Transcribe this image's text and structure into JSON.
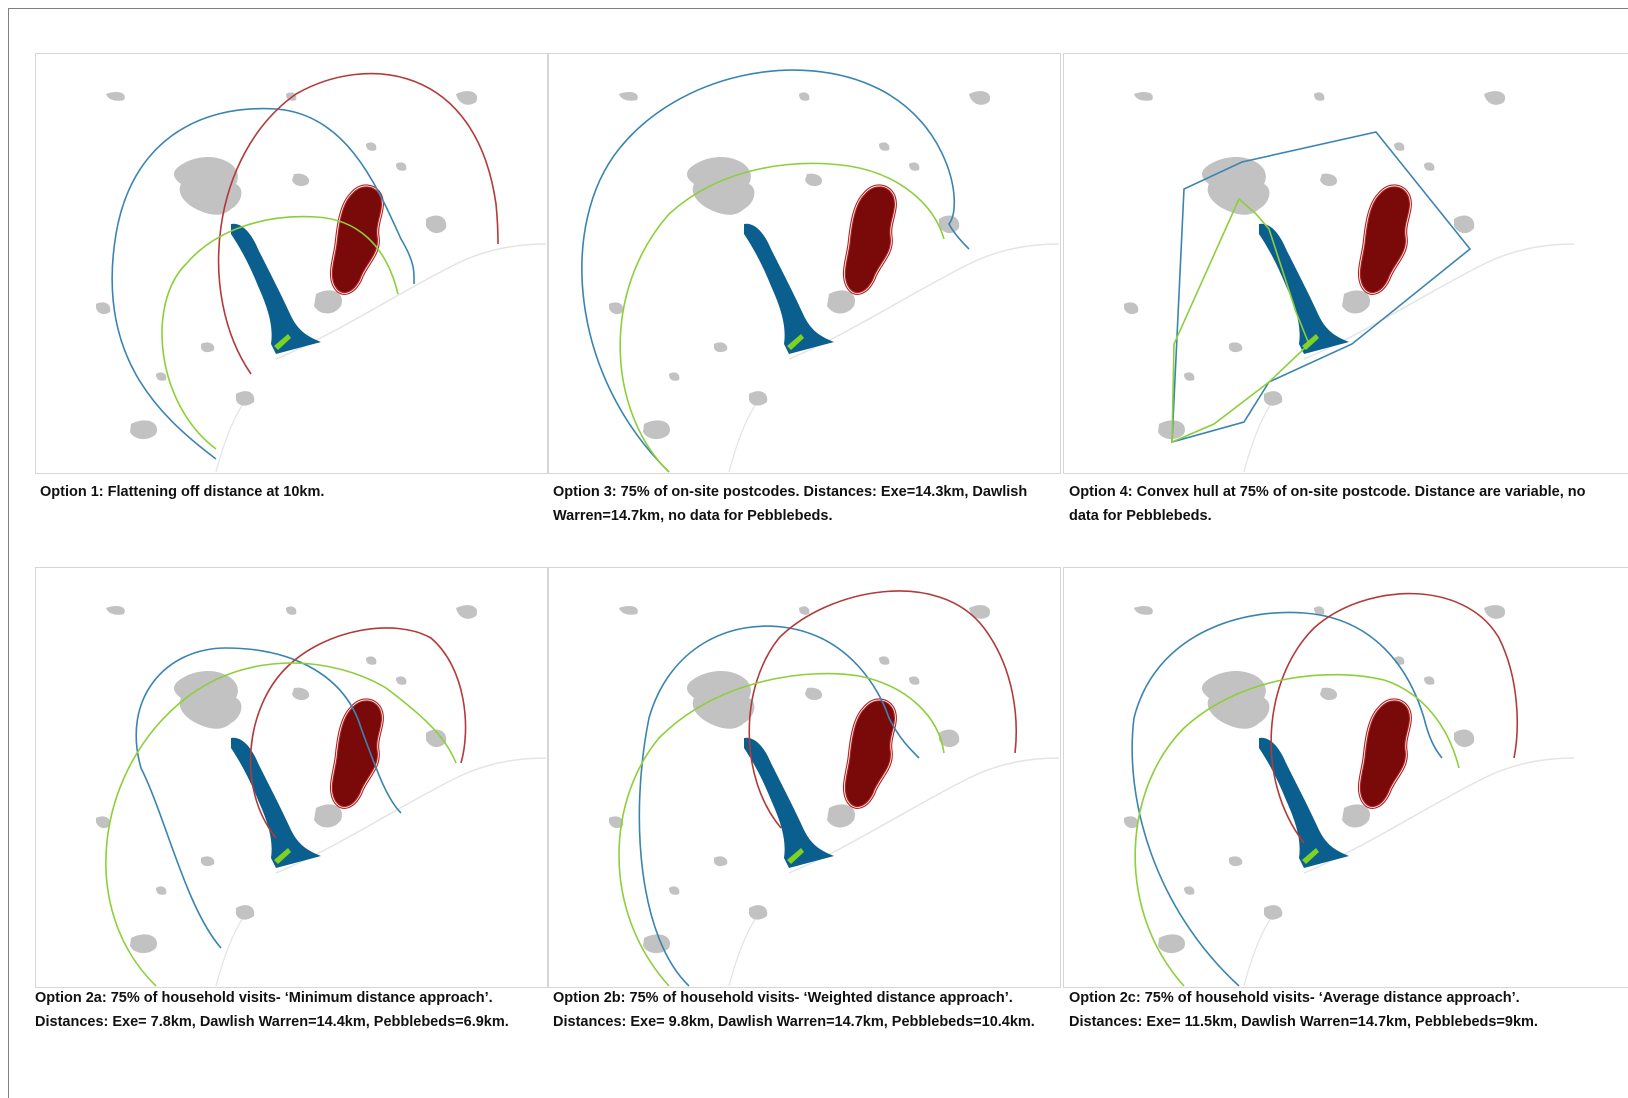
{
  "figure": {
    "panels": [
      {
        "id": "option-1",
        "caption": "Option 1: Flattening off distance at 10km.",
        "buffers": [
          "blue",
          "red",
          "green"
        ]
      },
      {
        "id": "option-3",
        "caption": "Option 3: 75% of on-site postcodes. Distances: Exe=14.3km, Dawlish Warren=14.7km, no data for Pebblebeds.",
        "buffers": [
          "blue",
          "green"
        ]
      },
      {
        "id": "option-4",
        "caption": "Option 4: Convex hull at 75% of on-site postcode. Distance are variable, no data for Pebblebeds.",
        "buffers": [
          "blue-hull",
          "green-hull"
        ]
      },
      {
        "id": "option-2a",
        "caption": "Option 2a: 75% of household visits- ‘Minimum distance approach’. Distances: Exe= 7.8km, Dawlish Warren=14.4km, Pebblebeds=6.9km.",
        "buffers": [
          "blue",
          "red",
          "green"
        ]
      },
      {
        "id": "option-2b",
        "caption": "Option 2b: 75% of household visits- ‘Weighted distance approach’. Distances: Exe= 9.8km, Dawlish Warren=14.7km, Pebblebeds=10.4km.",
        "buffers": [
          "blue",
          "red",
          "green"
        ]
      },
      {
        "id": "option-2c",
        "caption": "Option 2c: 75% of household visits- ‘Average distance approach’. Distances: Exe= 11.5km, Dawlish Warren=14.7km, Pebblebeds=9km.",
        "buffers": [
          "blue",
          "red",
          "green"
        ]
      }
    ]
  },
  "colors": {
    "settlement": "#c2c2c2",
    "estuary": "#0b5f8f",
    "pebblebeds_fill": "#7a0a0a",
    "pebblebeds_outline": "#b22222",
    "dawlish_warren": "#7ed320",
    "buffer_exe": "#3a84b0",
    "buffer_pebblebeds": "#b33a3a",
    "buffer_dawlish": "#8ccf3a",
    "coastline": "#e4e4e4"
  }
}
